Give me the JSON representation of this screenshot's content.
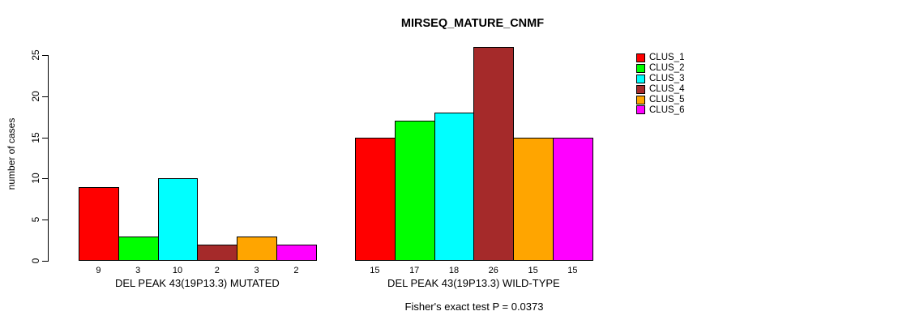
{
  "title": "MIRSEQ_MATURE_CNMF",
  "y_axis": {
    "label": "number of cases",
    "ticks": [
      0,
      5,
      10,
      15,
      20,
      25
    ]
  },
  "caption": "Fisher's exact test P = 0.0373",
  "chart_data": {
    "type": "bar",
    "title": "MIRSEQ_MATURE_CNMF",
    "xlabel": "",
    "ylabel": "number of cases",
    "ylim": [
      0,
      26
    ],
    "y_ticks": [
      0,
      5,
      10,
      15,
      20,
      25
    ],
    "grid": false,
    "legend_position": "right-outside",
    "bar_value_labels": true,
    "categories": [
      "DEL PEAK 43(19P13.3) MUTATED",
      "DEL PEAK 43(19P13.3) WILD-TYPE"
    ],
    "series": [
      {
        "name": "CLUS_1",
        "color": "#FF0000",
        "values": [
          9,
          15
        ]
      },
      {
        "name": "CLUS_2",
        "color": "#00FF00",
        "values": [
          3,
          17
        ]
      },
      {
        "name": "CLUS_3",
        "color": "#00FFFF",
        "values": [
          10,
          18
        ]
      },
      {
        "name": "CLUS_4",
        "color": "#A52A2A",
        "values": [
          2,
          26
        ]
      },
      {
        "name": "CLUS_5",
        "color": "#FFA500",
        "values": [
          3,
          15
        ]
      },
      {
        "name": "CLUS_6",
        "color": "#FF00FF",
        "values": [
          2,
          15
        ]
      }
    ],
    "annotation": "Fisher's exact test P = 0.0373"
  }
}
